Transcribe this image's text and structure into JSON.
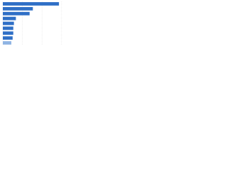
{
  "chart_data": {
    "type": "bar",
    "orientation": "horizontal",
    "categories": [
      null,
      null,
      null,
      null,
      null,
      null,
      null,
      null,
      null
    ],
    "values": [
      86,
      46,
      41,
      20,
      17,
      16,
      16,
      15,
      13
    ],
    "colors": [
      "#2f6fc6",
      "#2f6fc6",
      "#2f6fc6",
      "#2f6fc6",
      "#2f6fc6",
      "#2f6fc6",
      "#2f6fc6",
      "#2f6fc6",
      "#8fb4e3"
    ],
    "xlim": [
      0,
      100
    ],
    "xticks": [
      0,
      30,
      60,
      90
    ],
    "grid": true
  }
}
